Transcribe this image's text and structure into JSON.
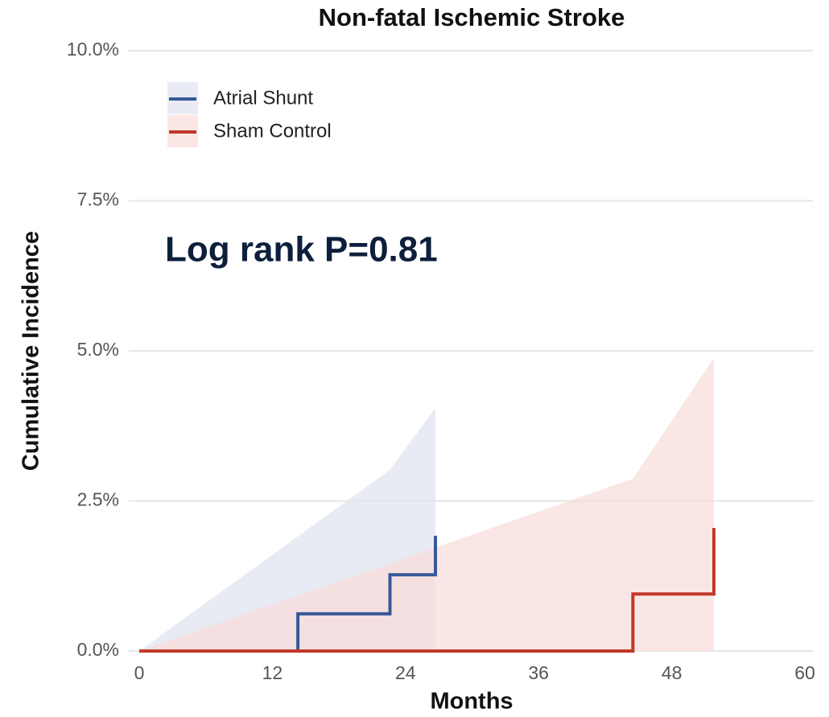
{
  "chart_data": {
    "type": "step",
    "title": "Non-fatal Ischemic Stroke",
    "xlabel": "Months",
    "ylabel": "Cumulative Incidence",
    "annotation": "Log rank P=0.81",
    "xlim": [
      0,
      60
    ],
    "xticks": [
      0,
      12,
      24,
      36,
      48,
      60
    ],
    "ylim": [
      0,
      10
    ],
    "yticks": [
      {
        "value": 0,
        "label": "0.0%"
      },
      {
        "value": 2.5,
        "label": "2.5%"
      },
      {
        "value": 5,
        "label": "5.0%"
      },
      {
        "value": 7.5,
        "label": "7.5%"
      },
      {
        "value": 10,
        "label": "10.0%"
      }
    ],
    "grid": true,
    "legend": "upper left",
    "series": [
      {
        "name": "Atrial Shunt",
        "color": "#37589a",
        "band_color": "#dfe3ef",
        "x": [
          0,
          14.3,
          22.6,
          26.7
        ],
        "values": [
          0,
          0.62,
          1.27,
          1.92
        ],
        "band_x": [
          0,
          22.6,
          26.7
        ],
        "band_upper": [
          0,
          3.02,
          4.05
        ],
        "band_lower": [
          0,
          0,
          0
        ]
      },
      {
        "name": "Sham Control",
        "color": "#c0392b",
        "band_color": "#f8dcd9",
        "x": [
          0,
          44.5,
          51.8
        ],
        "values": [
          0,
          0.95,
          2.05
        ],
        "band_x": [
          0,
          44.5,
          51.8
        ],
        "band_upper": [
          0,
          2.87,
          4.88
        ],
        "band_lower": [
          0,
          0,
          0
        ]
      }
    ]
  }
}
